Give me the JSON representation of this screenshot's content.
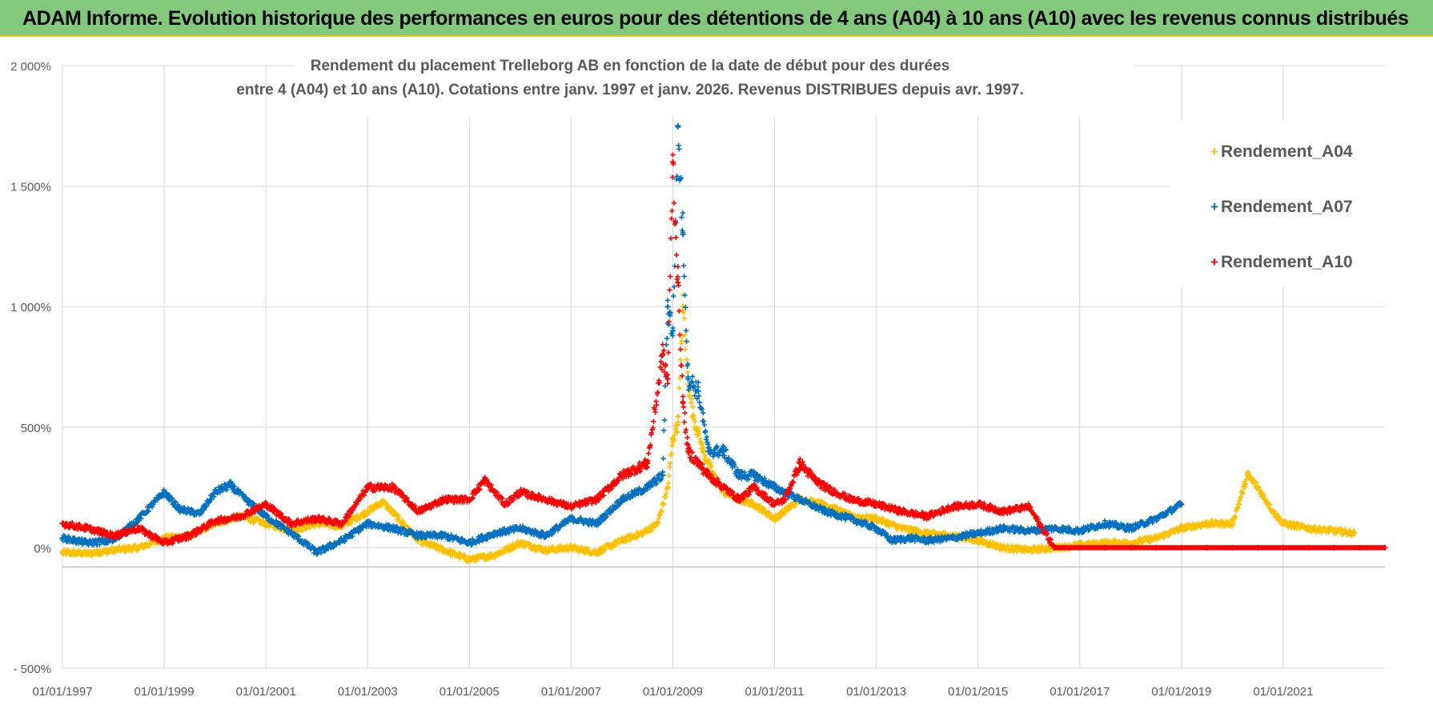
{
  "banner": {
    "title": "ADAM Informe. Evolution historique des performances en euros pour des détentions de 4 ans (A04) à 10 ans (A10) avec les revenus connus distribués"
  },
  "colors": {
    "banner_bg": "#82c97c",
    "A04": "#ffc000",
    "A07": "#0070c0",
    "A10": "#ff0000",
    "grid": "#d9d9d9"
  },
  "chart_data": {
    "type": "scatter",
    "title_line1": "Rendement du placement Trelleborg AB en fonction de la date de début pour des durées",
    "title_line2": "entre 4 (A04) et 10 ans (A10).  Cotations entre janv. 1997 et janv. 2026. Revenus DISTRIBUES depuis avr. 1997.",
    "xlim": [
      1997.0,
      2023.0
    ],
    "ylim": [
      -500,
      2000
    ],
    "yticks": [
      -500,
      0,
      500,
      1000,
      1500,
      2000
    ],
    "ytick_labels": [
      "- 500%",
      "0%",
      "500%",
      "1 000%",
      "1 500%",
      "2 000%"
    ],
    "xticks": [
      1997,
      1999,
      2001,
      2003,
      2005,
      2007,
      2009,
      2011,
      2013,
      2015,
      2017,
      2019,
      2021
    ],
    "xtick_labels": [
      "01/01/1997",
      "01/01/1999",
      "01/01/2001",
      "01/01/2003",
      "01/01/2005",
      "01/01/2007",
      "01/01/2009",
      "01/01/2011",
      "01/01/2013",
      "01/01/2015",
      "01/01/2017",
      "01/01/2019",
      "01/01/2021"
    ],
    "legend_position": "top-right",
    "series": [
      {
        "name": "Rendement_A04",
        "color": "#ffc000",
        "x": [
          1997.0,
          1997.5,
          1998.0,
          1998.5,
          1999.0,
          1999.5,
          2000.0,
          2000.5,
          2001.0,
          2001.5,
          2002.0,
          2002.5,
          2003.0,
          2003.3,
          2003.7,
          2004.0,
          2004.5,
          2005.0,
          2005.5,
          2006.0,
          2006.5,
          2007.0,
          2007.5,
          2008.0,
          2008.4,
          2008.7,
          2008.9,
          2009.0,
          2009.1,
          2009.2,
          2009.3,
          2009.4,
          2009.6,
          2009.8,
          2010.0,
          2010.3,
          2010.6,
          2011.0,
          2011.5,
          2012.0,
          2012.5,
          2013.0,
          2013.5,
          2014.0,
          2014.5,
          2015.0,
          2015.5,
          2016.0,
          2016.5,
          2017.0,
          2017.5,
          2018.0,
          2018.5,
          2019.0,
          2019.5,
          2020.0,
          2020.3,
          2020.5,
          2020.8,
          2021.0,
          2021.5,
          2022.0,
          2022.4
        ],
        "y": [
          -20,
          -25,
          -10,
          0,
          40,
          50,
          100,
          130,
          100,
          70,
          100,
          90,
          150,
          190,
          100,
          30,
          -10,
          -50,
          -30,
          20,
          -10,
          0,
          -20,
          30,
          60,
          100,
          250,
          450,
          520,
          1000,
          700,
          550,
          400,
          300,
          230,
          200,
          180,
          120,
          200,
          180,
          130,
          120,
          80,
          60,
          50,
          30,
          0,
          -10,
          0,
          10,
          20,
          20,
          40,
          80,
          100,
          100,
          300,
          250,
          150,
          100,
          80,
          70,
          60
        ]
      },
      {
        "name": "Rendement_A07",
        "color": "#0070c0",
        "x": [
          1997.0,
          1997.5,
          1998.0,
          1998.5,
          1999.0,
          1999.3,
          1999.7,
          2000.0,
          2000.3,
          2000.6,
          2001.0,
          2001.5,
          2002.0,
          2002.5,
          2003.0,
          2003.5,
          2004.0,
          2004.5,
          2005.0,
          2005.5,
          2006.0,
          2006.5,
          2007.0,
          2007.5,
          2008.0,
          2008.5,
          2008.8,
          2008.9,
          2009.0,
          2009.1,
          2009.2,
          2009.3,
          2009.5,
          2009.7,
          2010.0,
          2010.3,
          2010.6,
          2011.0,
          2011.5,
          2012.0,
          2012.5,
          2013.0,
          2013.3,
          2013.7,
          2014.0,
          2014.5,
          2015.0,
          2015.5,
          2016.0,
          2016.5,
          2017.0,
          2017.5,
          2018.0,
          2018.5,
          2019.0
        ],
        "y": [
          40,
          20,
          30,
          120,
          230,
          160,
          140,
          230,
          260,
          200,
          130,
          60,
          -20,
          30,
          100,
          80,
          50,
          50,
          20,
          60,
          80,
          50,
          120,
          100,
          200,
          250,
          300,
          1000,
          900,
          1750,
          1300,
          700,
          650,
          400,
          400,
          300,
          300,
          250,
          200,
          150,
          120,
          80,
          30,
          40,
          30,
          40,
          60,
          80,
          70,
          80,
          70,
          100,
          80,
          120,
          180
        ]
      },
      {
        "name": "Rendement_A10",
        "color": "#ff0000",
        "x": [
          1997.0,
          1997.5,
          1998.0,
          1998.5,
          1999.0,
          1999.5,
          2000.0,
          2000.5,
          2001.0,
          2001.5,
          2002.0,
          2002.5,
          2003.0,
          2003.5,
          2004.0,
          2004.5,
          2005.0,
          2005.3,
          2005.7,
          2006.0,
          2006.5,
          2007.0,
          2007.5,
          2008.0,
          2008.5,
          2008.8,
          2008.9,
          2009.0,
          2009.1,
          2009.2,
          2009.3,
          2009.5,
          2009.7,
          2010.0,
          2010.3,
          2010.6,
          2011.0,
          2011.2,
          2011.5,
          2011.8,
          2012.0,
          2012.5,
          2013.0,
          2013.5,
          2014.0,
          2014.5,
          2015.0,
          2015.5,
          2016.0,
          2016.5,
          2017.0,
          2017.5,
          2018.0,
          2018.5,
          2019.0,
          2019.5,
          2020.0,
          2020.5,
          2021.0,
          2021.5,
          2022.0,
          2022.5,
          2023.0
        ],
        "y": [
          100,
          80,
          50,
          80,
          20,
          50,
          110,
          130,
          180,
          100,
          120,
          100,
          250,
          250,
          150,
          200,
          200,
          280,
          180,
          230,
          200,
          170,
          200,
          300,
          350,
          800,
          700,
          1600,
          1100,
          600,
          400,
          350,
          300,
          250,
          200,
          250,
          180,
          200,
          350,
          280,
          250,
          200,
          180,
          150,
          130,
          170,
          180,
          150,
          170,
          0,
          0,
          0,
          0,
          0,
          0,
          0,
          0,
          0,
          0,
          0,
          0,
          0,
          0
        ]
      }
    ]
  }
}
